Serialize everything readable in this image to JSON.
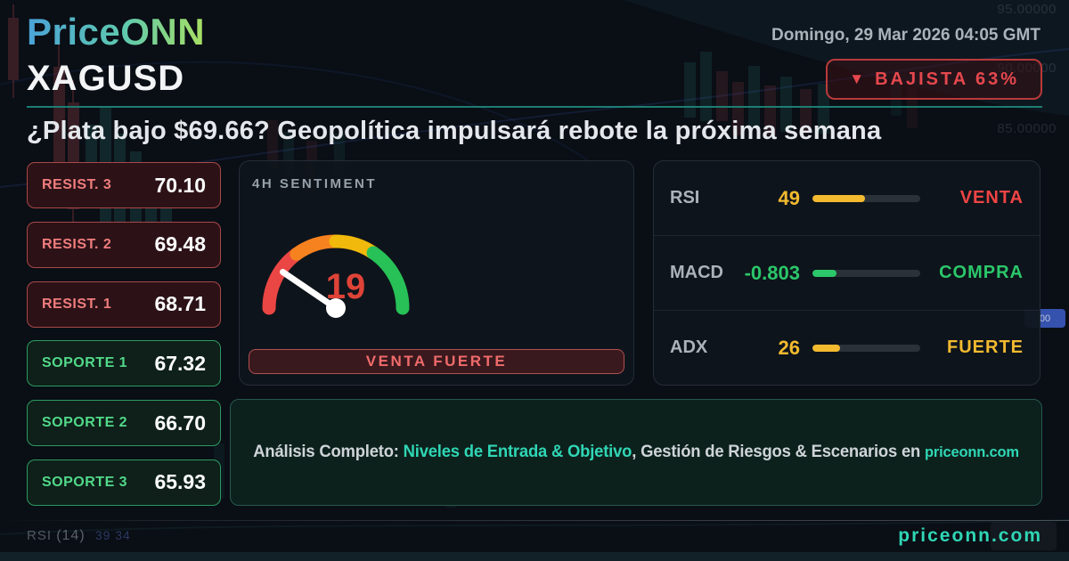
{
  "brand": {
    "logo_part1": "Price",
    "logo_part2": "ONN"
  },
  "header": {
    "datetime": "Domingo, 29 Mar 2026 04:05 GMT",
    "symbol": "XAGUSD",
    "signal_icon": "▼",
    "signal_label": "BAJISTA 63%"
  },
  "headline": "¿Plata bajo $69.66? Geopolítica impulsará rebote la próxima semana",
  "levels": {
    "resistances": [
      {
        "label": "RESIST. 3",
        "value": "70.10"
      },
      {
        "label": "RESIST. 2",
        "value": "69.48"
      },
      {
        "label": "RESIST. 1",
        "value": "68.71"
      }
    ],
    "supports": [
      {
        "label": "SOPORTE 1",
        "value": "67.32"
      },
      {
        "label": "SOPORTE 2",
        "value": "66.70"
      },
      {
        "label": "SOPORTE 3",
        "value": "65.93"
      }
    ]
  },
  "sentiment": {
    "title": "4H SENTIMENT",
    "value": 19,
    "scale_max": 100,
    "status": "VENTA FUERTE"
  },
  "indicators": [
    {
      "name": "RSI",
      "value": "49",
      "pct": 49,
      "status": "VENTA",
      "color": "#f3ba2f",
      "status_color": "#ef4444"
    },
    {
      "name": "MACD",
      "value": "-0.803",
      "pct": 22,
      "status": "COMPRA",
      "color": "#2bc76a",
      "status_color": "#2bc76a"
    },
    {
      "name": "ADX",
      "value": "26",
      "pct": 26,
      "status": "FUERTE",
      "color": "#f3ba2f",
      "status_color": "#f3ba2f"
    }
  ],
  "banner": {
    "prefix": "Análisis Completo: ",
    "highlight": "Niveles de Entrada & Objetivo",
    "middle": ", Gestión de Riesgos & Escenarios en ",
    "site": "priceonn.com"
  },
  "footer": {
    "left_indicator": "RSI",
    "left_param": "(14)",
    "left_values": "39 34",
    "site": "priceonn.com"
  },
  "background": {
    "axis_labels": [
      "95.00000",
      "90.00000",
      "85.00000"
    ],
    "price_tag": "00"
  },
  "colors": {
    "accent_teal": "#2fd6b5",
    "bearish_red": "#e5484d",
    "bullish_green": "#2bc76a",
    "warning_gold": "#f3ba2f",
    "divider_teal": "#1d7d73"
  }
}
